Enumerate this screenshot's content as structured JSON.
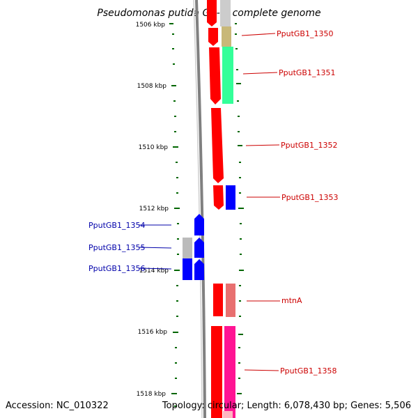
{
  "title": "Pseudomonas putida GB-1, complete genome",
  "accession": "Accession: NC_010322",
  "topology": "Topology: circular; Length: 6,078,430 bp; Genes: 5,506",
  "colors": {
    "forward_cds": "#ff0000",
    "reverse_cds": "#0000ff",
    "forward_label": "#cc0000",
    "reverse_label": "#0000aa",
    "tick": "#006600",
    "backbone": "#808080"
  },
  "scale": {
    "unit": "kbp",
    "ticks": [
      {
        "label": "1506 kbp",
        "value": 1506
      },
      {
        "label": "1508 kbp",
        "value": 1508
      },
      {
        "label": "1510 kbp",
        "value": 1510
      },
      {
        "label": "1512 kbp",
        "value": 1512
      },
      {
        "label": "1514 kbp",
        "value": 1514
      },
      {
        "label": "1516 kbp",
        "value": 1516
      },
      {
        "label": "1518 kbp",
        "value": 1518
      }
    ]
  },
  "genes": [
    {
      "label": "PputGB1_1350",
      "strand": "+"
    },
    {
      "label": "PputGB1_1351",
      "strand": "+"
    },
    {
      "label": "PputGB1_1352",
      "strand": "+"
    },
    {
      "label": "PputGB1_1353",
      "strand": "+"
    },
    {
      "label": "PputGB1_1354",
      "strand": "-"
    },
    {
      "label": "PputGB1_1355",
      "strand": "-"
    },
    {
      "label": "PputGB1_1356",
      "strand": "-"
    },
    {
      "label": "mtnA",
      "strand": "+"
    },
    {
      "label": "PputGB1_1358",
      "strand": "+"
    }
  ]
}
